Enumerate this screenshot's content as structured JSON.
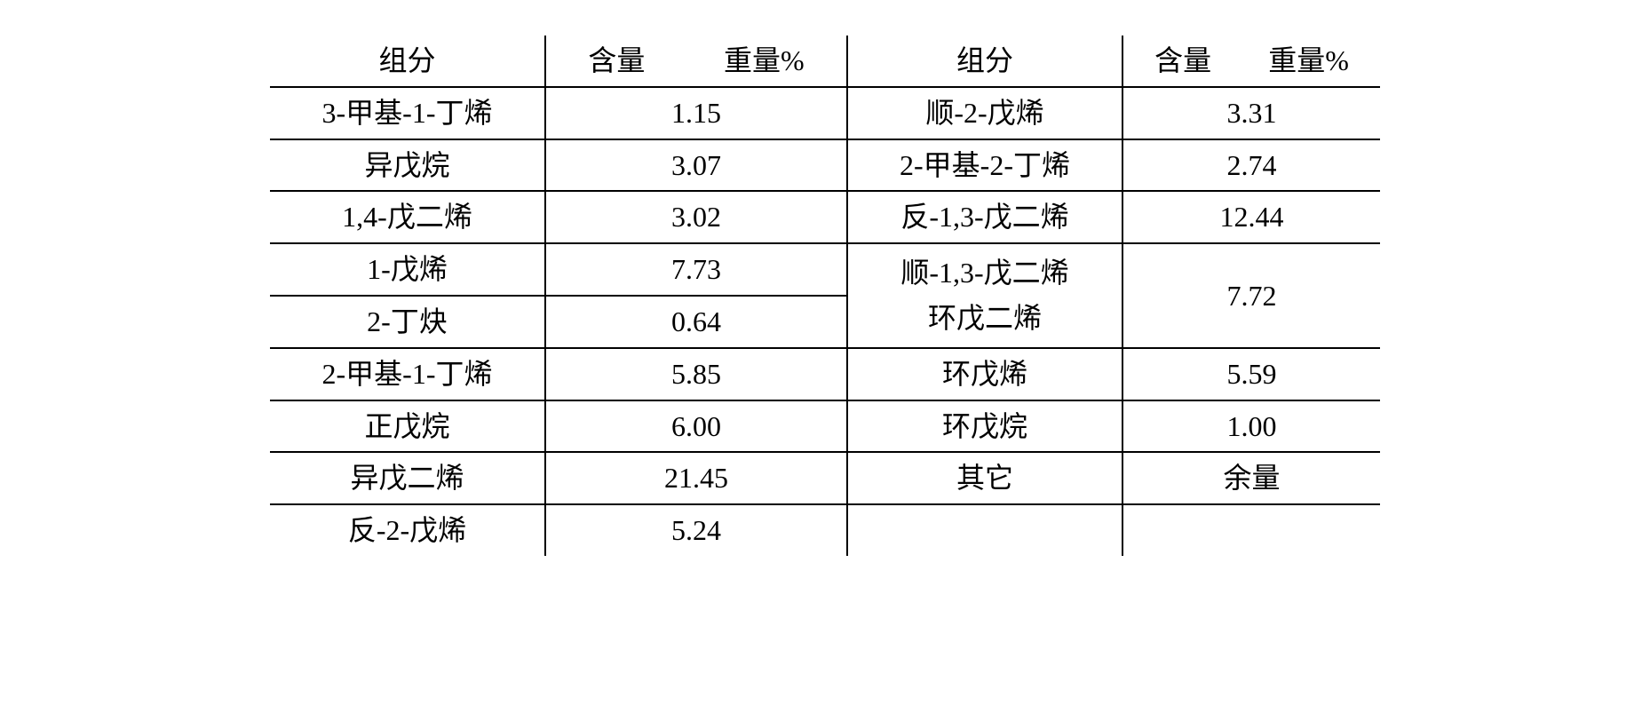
{
  "table": {
    "headers": {
      "col1": "组分",
      "col2_part1": "含量",
      "col2_part2": "重量%",
      "col3": "组分",
      "col4_part1": "含量",
      "col4_part2": "重量%"
    },
    "left": [
      {
        "component": "3-甲基-1-丁烯",
        "value": "1.15"
      },
      {
        "component": "异戊烷",
        "value": "3.07"
      },
      {
        "component": "1,4-戊二烯",
        "value": "3.02"
      },
      {
        "component": "1-戊烯",
        "value": "7.73"
      },
      {
        "component": "2-丁炔",
        "value": "0.64"
      },
      {
        "component": "2-甲基-1-丁烯",
        "value": "5.85"
      },
      {
        "component": "正戊烷",
        "value": "6.00"
      },
      {
        "component": "异戊二烯",
        "value": "21.45"
      },
      {
        "component": "反-2-戊烯",
        "value": "5.24"
      }
    ],
    "right": [
      {
        "component": "顺-2-戊烯",
        "value": "3.31"
      },
      {
        "component": "2-甲基-2-丁烯",
        "value": "2.74"
      },
      {
        "component": "反-1,3-戊二烯",
        "value": "12.44"
      }
    ],
    "right_merged": {
      "component_line1": "顺-1,3-戊二烯",
      "component_line2": "环戊二烯",
      "value": "7.72"
    },
    "right_after": [
      {
        "component": "环戊烯",
        "value": "5.59"
      },
      {
        "component": "环戊烷",
        "value": "1.00"
      },
      {
        "component": "其它",
        "value": "余量"
      }
    ],
    "styling": {
      "border_color": "#000000",
      "border_width": 2,
      "background": "#ffffff",
      "font_family": "SimSun",
      "font_size": 32,
      "text_align": "center"
    }
  }
}
